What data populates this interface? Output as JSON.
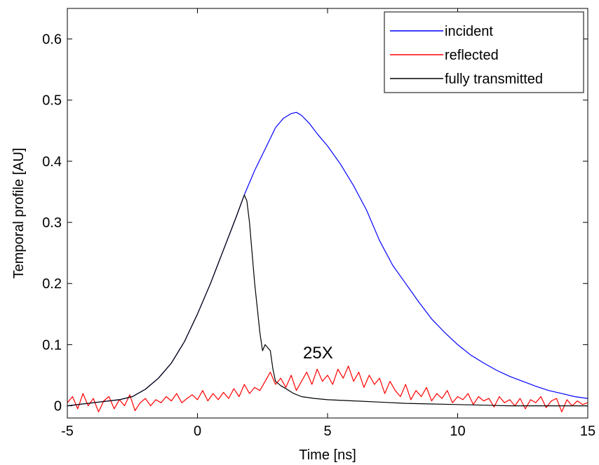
{
  "chart_data": {
    "type": "line",
    "title": "",
    "xlabel": "Time [ns]",
    "ylabel": "Temporal profile [AU]",
    "xlim": [
      -5,
      15
    ],
    "ylim": [
      -0.02,
      0.65
    ],
    "xticks": [
      -5,
      0,
      5,
      10,
      15
    ],
    "xtick_labels": [
      "-5",
      "0",
      "5",
      "10",
      "15"
    ],
    "yticks": [
      0,
      0.1,
      0.2,
      0.3,
      0.4,
      0.5,
      0.6
    ],
    "ytick_labels": [
      "0",
      "0.1",
      "0.2",
      "0.3",
      "0.4",
      "0.5",
      "0.6"
    ],
    "grid": false,
    "legend_position": "top-right",
    "annotation": "25X",
    "series": [
      {
        "name": "incident",
        "color": "#0000ff",
        "x": [
          -5,
          -4,
          -3,
          -2.5,
          -2,
          -1.5,
          -1,
          -0.5,
          0,
          0.5,
          1,
          1.5,
          1.8,
          2.2,
          2.6,
          3,
          3.3,
          3.6,
          3.8,
          4,
          4.3,
          4.6,
          5,
          5.5,
          6,
          6.5,
          7,
          7.5,
          8,
          8.5,
          9,
          9.5,
          10,
          10.5,
          11,
          11.5,
          12,
          12.5,
          13,
          13.5,
          14,
          14.5,
          15
        ],
        "y": [
          0.0,
          0.005,
          0.01,
          0.015,
          0.027,
          0.045,
          0.07,
          0.105,
          0.15,
          0.2,
          0.255,
          0.31,
          0.345,
          0.385,
          0.42,
          0.455,
          0.47,
          0.478,
          0.48,
          0.475,
          0.462,
          0.445,
          0.425,
          0.395,
          0.36,
          0.32,
          0.27,
          0.23,
          0.2,
          0.17,
          0.142,
          0.12,
          0.1,
          0.083,
          0.07,
          0.058,
          0.048,
          0.04,
          0.032,
          0.025,
          0.02,
          0.015,
          0.012
        ]
      },
      {
        "name": "reflected",
        "color": "#ff0000",
        "x": [
          -5,
          -4.8,
          -4.6,
          -4.4,
          -4.2,
          -4,
          -3.8,
          -3.6,
          -3.4,
          -3.2,
          -3,
          -2.8,
          -2.6,
          -2.4,
          -2.2,
          -2,
          -1.8,
          -1.6,
          -1.4,
          -1.2,
          -1,
          -0.8,
          -0.6,
          -0.4,
          -0.2,
          0,
          0.2,
          0.4,
          0.6,
          0.8,
          1,
          1.2,
          1.4,
          1.6,
          1.8,
          2,
          2.2,
          2.4,
          2.6,
          2.8,
          3,
          3.2,
          3.4,
          3.6,
          3.8,
          4,
          4.2,
          4.4,
          4.6,
          4.8,
          5,
          5.2,
          5.4,
          5.6,
          5.8,
          6,
          6.2,
          6.4,
          6.6,
          6.8,
          7,
          7.2,
          7.4,
          7.6,
          7.8,
          8,
          8.2,
          8.4,
          8.6,
          8.8,
          9,
          9.2,
          9.4,
          9.6,
          9.8,
          10,
          10.2,
          10.4,
          10.6,
          10.8,
          11,
          11.2,
          11.4,
          11.6,
          11.8,
          12,
          12.2,
          12.4,
          12.6,
          12.8,
          13,
          13.2,
          13.4,
          13.6,
          13.8,
          14,
          14.2,
          14.4,
          14.6,
          14.8,
          15
        ],
        "y": [
          0.005,
          0.015,
          -0.005,
          0.02,
          0.0,
          0.012,
          -0.01,
          0.008,
          0.015,
          -0.005,
          0.01,
          0.0,
          0.018,
          -0.008,
          0.005,
          0.012,
          0.0,
          0.01,
          0.005,
          0.015,
          0.008,
          0.02,
          0.005,
          0.012,
          0.018,
          0.01,
          0.025,
          0.008,
          0.02,
          0.01,
          0.022,
          0.012,
          0.028,
          0.015,
          0.035,
          0.02,
          0.03,
          0.025,
          0.04,
          0.055,
          0.035,
          0.045,
          0.03,
          0.05,
          0.025,
          0.04,
          0.055,
          0.035,
          0.06,
          0.04,
          0.05,
          0.035,
          0.06,
          0.045,
          0.065,
          0.04,
          0.055,
          0.03,
          0.05,
          0.035,
          0.045,
          0.02,
          0.04,
          0.025,
          0.015,
          0.035,
          0.01,
          0.025,
          0.015,
          0.03,
          0.008,
          0.02,
          0.012,
          0.025,
          0.005,
          0.015,
          0.01,
          0.02,
          0.002,
          0.015,
          0.008,
          0.012,
          -0.002,
          0.015,
          0.005,
          0.01,
          0.0,
          0.012,
          -0.005,
          0.01,
          0.005,
          0.015,
          -0.003,
          0.008,
          0.012,
          -0.01,
          0.01,
          0.0,
          0.008,
          0.002,
          0.005
        ]
      },
      {
        "name": "fully transmitted",
        "color": "#000000",
        "x": [
          -5,
          -4,
          -3,
          -2.5,
          -2,
          -1.5,
          -1,
          -0.5,
          0,
          0.5,
          1,
          1.5,
          1.8,
          1.9,
          2.0,
          2.1,
          2.2,
          2.3,
          2.4,
          2.5,
          2.6,
          2.7,
          2.8,
          2.9,
          3.0,
          3.2,
          3.4,
          3.7,
          4,
          4.5,
          5,
          6,
          7,
          8,
          9,
          10,
          11,
          12,
          13,
          14,
          15
        ],
        "y": [
          0.0,
          0.005,
          0.01,
          0.015,
          0.027,
          0.045,
          0.07,
          0.105,
          0.15,
          0.2,
          0.255,
          0.31,
          0.345,
          0.335,
          0.3,
          0.25,
          0.2,
          0.16,
          0.12,
          0.09,
          0.1,
          0.095,
          0.09,
          0.06,
          0.04,
          0.033,
          0.028,
          0.02,
          0.015,
          0.012,
          0.01,
          0.008,
          0.006,
          0.004,
          0.003,
          0.002,
          0.001,
          0.0,
          0.0,
          0.0,
          0.0
        ]
      }
    ]
  }
}
